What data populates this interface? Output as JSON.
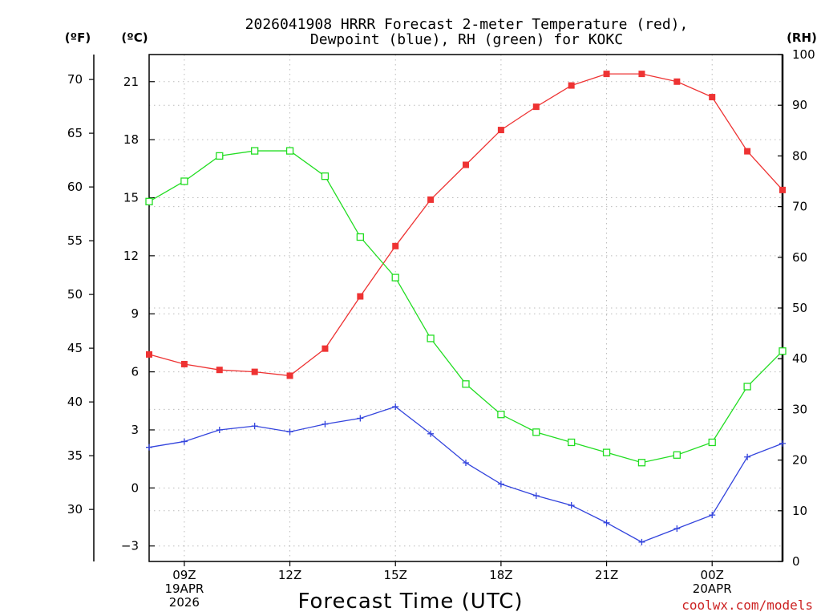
{
  "chart_data": {
    "type": "line",
    "title_line1": "2026041908 HRRR Forecast 2-meter Temperature (red),",
    "title_line2": "Dewpoint (blue), RH (green) for KOKC",
    "xlabel": "Forecast Time (UTC)",
    "left_unit_f": "(ºF)",
    "left_unit_c": "(ºC)",
    "right_unit": "(RH)",
    "credit": "coolwx.com/models",
    "grid": true,
    "x_hours": [
      8,
      9,
      10,
      11,
      12,
      13,
      14,
      15,
      16,
      17,
      18,
      19,
      20,
      21,
      22,
      23,
      24,
      25,
      26
    ],
    "xlim": [
      8,
      26
    ],
    "x_ticks": [
      {
        "hour": 9,
        "lines": [
          "09Z",
          "19APR",
          "2026"
        ]
      },
      {
        "hour": 12,
        "lines": [
          "12Z"
        ]
      },
      {
        "hour": 15,
        "lines": [
          "15Z"
        ]
      },
      {
        "hour": 18,
        "lines": [
          "18Z"
        ]
      },
      {
        "hour": 21,
        "lines": [
          "21Z"
        ]
      },
      {
        "hour": 24,
        "lines": [
          "00Z",
          "20APR"
        ]
      }
    ],
    "celsius_axis": {
      "ylim": [
        -3.8,
        22.4
      ],
      "ticks": [
        -3,
        0,
        3,
        6,
        9,
        12,
        15,
        18,
        21
      ],
      "tick_labels": [
        "−3",
        "0",
        "3",
        "6",
        "9",
        "12",
        "15",
        "18",
        "21"
      ]
    },
    "fahrenheit_axis": {
      "ticks": [
        30,
        35,
        40,
        45,
        50,
        55,
        60,
        65,
        70
      ],
      "tick_labels": [
        "30",
        "35",
        "40",
        "45",
        "50",
        "55",
        "60",
        "65",
        "70"
      ]
    },
    "rh_axis": {
      "ylim": [
        0,
        100
      ],
      "ticks": [
        0,
        10,
        20,
        30,
        40,
        50,
        60,
        70,
        80,
        90,
        100
      ],
      "tick_labels": [
        "0",
        "10",
        "20",
        "30",
        "40",
        "50",
        "60",
        "70",
        "80",
        "90",
        "100"
      ]
    },
    "series": [
      {
        "name": "2-meter Temperature",
        "axis": "celsius",
        "color": "#ee3333",
        "marker": "filled-square",
        "values": [
          6.9,
          6.4,
          6.1,
          6.0,
          5.8,
          7.2,
          9.9,
          12.5,
          14.9,
          16.7,
          18.5,
          19.7,
          20.8,
          21.4,
          21.4,
          21.0,
          20.2,
          17.4,
          15.4
        ]
      },
      {
        "name": "Dewpoint",
        "axis": "celsius",
        "color": "#3344dd",
        "marker": "plus",
        "values": [
          2.1,
          2.4,
          3.0,
          3.2,
          2.9,
          3.3,
          3.6,
          4.2,
          2.8,
          1.3,
          0.2,
          -0.4,
          -0.9,
          -1.8,
          -2.8,
          -2.1,
          -1.4,
          1.6,
          2.3
        ]
      },
      {
        "name": "RH",
        "axis": "rh",
        "color": "#22dd22",
        "marker": "open-square",
        "values": [
          71,
          75,
          80,
          81,
          81,
          76,
          64,
          56,
          44,
          35,
          29,
          25.5,
          23.5,
          21.5,
          19.5,
          21,
          23.5,
          34.5,
          41.5
        ]
      }
    ]
  }
}
